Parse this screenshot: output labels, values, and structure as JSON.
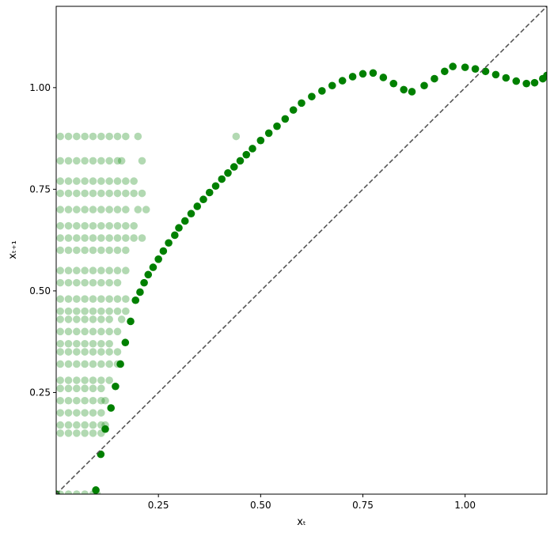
{
  "chart_data": {
    "type": "scatter",
    "xlabel": "xₜ",
    "ylabel": "xₜ₊₁",
    "xlim": [
      0,
      1.2
    ],
    "ylim": [
      0,
      1.2
    ],
    "xticks": [
      0.25,
      {
        "value": 0.5,
        "label": "0.50"
      },
      {
        "value": 0.75,
        "label": "0.75"
      },
      {
        "value": 1.0,
        "label": "1.00"
      }
    ],
    "yticks": [
      0.25,
      {
        "value": 0.5,
        "label": "0.50"
      },
      {
        "value": 0.75,
        "label": "0.75"
      },
      {
        "value": 1.0,
        "label": "1.00"
      }
    ],
    "reference_line": "identity",
    "series": [
      {
        "color": "green",
        "alpha": 0.3,
        "x": [
          0.01,
          0.03,
          0.05,
          0.07,
          0.09,
          0.1,
          0.01,
          0.03,
          0.05,
          0.07,
          0.09,
          0.11,
          0.01,
          0.03,
          0.05,
          0.07,
          0.09,
          0.11,
          0.12,
          0.01,
          0.03,
          0.05,
          0.07,
          0.09,
          0.11,
          0.01,
          0.03,
          0.05,
          0.07,
          0.09,
          0.11,
          0.12,
          0.01,
          0.03,
          0.05,
          0.07,
          0.09,
          0.11,
          0.01,
          0.03,
          0.05,
          0.07,
          0.09,
          0.11,
          0.13,
          0.01,
          0.03,
          0.05,
          0.07,
          0.09,
          0.11,
          0.13,
          0.15,
          0.01,
          0.03,
          0.05,
          0.07,
          0.09,
          0.11,
          0.13,
          0.15,
          0.01,
          0.03,
          0.05,
          0.07,
          0.09,
          0.11,
          0.13,
          0.01,
          0.03,
          0.05,
          0.07,
          0.09,
          0.11,
          0.13,
          0.15,
          0.01,
          0.03,
          0.05,
          0.07,
          0.09,
          0.11,
          0.13,
          0.16,
          0.01,
          0.03,
          0.05,
          0.07,
          0.09,
          0.11,
          0.13,
          0.15,
          0.17,
          0.01,
          0.03,
          0.05,
          0.07,
          0.09,
          0.11,
          0.13,
          0.15,
          0.17,
          0.01,
          0.03,
          0.05,
          0.07,
          0.09,
          0.11,
          0.13,
          0.15,
          0.01,
          0.03,
          0.05,
          0.07,
          0.09,
          0.11,
          0.13,
          0.15,
          0.17,
          0.01,
          0.03,
          0.05,
          0.07,
          0.09,
          0.11,
          0.13,
          0.15,
          0.17,
          0.01,
          0.03,
          0.05,
          0.07,
          0.09,
          0.11,
          0.13,
          0.15,
          0.17,
          0.19,
          0.21,
          0.01,
          0.03,
          0.05,
          0.07,
          0.09,
          0.11,
          0.13,
          0.15,
          0.17,
          0.19,
          0.01,
          0.03,
          0.05,
          0.07,
          0.09,
          0.11,
          0.13,
          0.15,
          0.17,
          0.2,
          0.22,
          0.01,
          0.03,
          0.05,
          0.07,
          0.09,
          0.11,
          0.13,
          0.15,
          0.17,
          0.19,
          0.21,
          0.01,
          0.03,
          0.05,
          0.07,
          0.09,
          0.11,
          0.13,
          0.15,
          0.17,
          0.19,
          0.01,
          0.03,
          0.05,
          0.07,
          0.09,
          0.11,
          0.13,
          0.15,
          0.16,
          0.21,
          0.01,
          0.03,
          0.05,
          0.07,
          0.09,
          0.11,
          0.13,
          0.15,
          0.17,
          0.2,
          0.44
        ],
        "values": [
          0,
          0,
          0,
          0,
          0,
          0,
          0.15,
          0.15,
          0.15,
          0.15,
          0.15,
          0.15,
          0.17,
          0.17,
          0.17,
          0.17,
          0.17,
          0.17,
          0.17,
          0.2,
          0.2,
          0.2,
          0.2,
          0.2,
          0.2,
          0.23,
          0.23,
          0.23,
          0.23,
          0.23,
          0.23,
          0.23,
          0.26,
          0.26,
          0.26,
          0.26,
          0.26,
          0.26,
          0.28,
          0.28,
          0.28,
          0.28,
          0.28,
          0.28,
          0.28,
          0.32,
          0.32,
          0.32,
          0.32,
          0.32,
          0.32,
          0.32,
          0.32,
          0.35,
          0.35,
          0.35,
          0.35,
          0.35,
          0.35,
          0.35,
          0.35,
          0.37,
          0.37,
          0.37,
          0.37,
          0.37,
          0.37,
          0.37,
          0.4,
          0.4,
          0.4,
          0.4,
          0.4,
          0.4,
          0.4,
          0.4,
          0.43,
          0.43,
          0.43,
          0.43,
          0.43,
          0.43,
          0.43,
          0.43,
          0.45,
          0.45,
          0.45,
          0.45,
          0.45,
          0.45,
          0.45,
          0.45,
          0.45,
          0.48,
          0.48,
          0.48,
          0.48,
          0.48,
          0.48,
          0.48,
          0.48,
          0.48,
          0.52,
          0.52,
          0.52,
          0.52,
          0.52,
          0.52,
          0.52,
          0.52,
          0.55,
          0.55,
          0.55,
          0.55,
          0.55,
          0.55,
          0.55,
          0.55,
          0.55,
          0.6,
          0.6,
          0.6,
          0.6,
          0.6,
          0.6,
          0.6,
          0.6,
          0.6,
          0.63,
          0.63,
          0.63,
          0.63,
          0.63,
          0.63,
          0.63,
          0.63,
          0.63,
          0.63,
          0.63,
          0.66,
          0.66,
          0.66,
          0.66,
          0.66,
          0.66,
          0.66,
          0.66,
          0.66,
          0.66,
          0.7,
          0.7,
          0.7,
          0.7,
          0.7,
          0.7,
          0.7,
          0.7,
          0.7,
          0.7,
          0.7,
          0.74,
          0.74,
          0.74,
          0.74,
          0.74,
          0.74,
          0.74,
          0.74,
          0.74,
          0.74,
          0.74,
          0.77,
          0.77,
          0.77,
          0.77,
          0.77,
          0.77,
          0.77,
          0.77,
          0.77,
          0.77,
          0.82,
          0.82,
          0.82,
          0.82,
          0.82,
          0.82,
          0.82,
          0.82,
          0.82,
          0.82,
          0.88,
          0.88,
          0.88,
          0.88,
          0.88,
          0.88,
          0.88,
          0.88,
          0.88,
          0.88,
          0.88
        ]
      },
      {
        "color": "green",
        "alpha": 1,
        "x": [
          0.0,
          0.097,
          0.109,
          0.12,
          0.134,
          0.145,
          0.157,
          0.169,
          0.182,
          0.194,
          0.205,
          0.215,
          0.225,
          0.237,
          0.25,
          0.262,
          0.275,
          0.29,
          0.3,
          0.315,
          0.33,
          0.345,
          0.36,
          0.375,
          0.39,
          0.405,
          0.42,
          0.435,
          0.45,
          0.465,
          0.48,
          0.5,
          0.52,
          0.54,
          0.56,
          0.58,
          0.6,
          0.625,
          0.65,
          0.675,
          0.7,
          0.725,
          0.75,
          0.775,
          0.8,
          0.825,
          0.85,
          0.87,
          0.9,
          0.925,
          0.95,
          0.97,
          1.0,
          1.025,
          1.05,
          1.075,
          1.1,
          1.125,
          1.15,
          1.17,
          1.19,
          1.2
        ],
        "values": [
          0.0,
          0.01,
          0.098,
          0.16,
          0.212,
          0.265,
          0.32,
          0.373,
          0.425,
          0.477,
          0.497,
          0.52,
          0.54,
          0.558,
          0.578,
          0.598,
          0.618,
          0.637,
          0.655,
          0.672,
          0.69,
          0.708,
          0.725,
          0.742,
          0.758,
          0.775,
          0.79,
          0.805,
          0.82,
          0.835,
          0.85,
          0.87,
          0.888,
          0.905,
          0.923,
          0.945,
          0.962,
          0.978,
          0.992,
          1.005,
          1.017,
          1.027,
          1.034,
          1.036,
          1.025,
          1.01,
          0.995,
          0.99,
          1.005,
          1.022,
          1.04,
          1.052,
          1.05,
          1.046,
          1.04,
          1.032,
          1.024,
          1.016,
          1.01,
          1.012,
          1.022,
          1.03
        ]
      }
    ]
  }
}
